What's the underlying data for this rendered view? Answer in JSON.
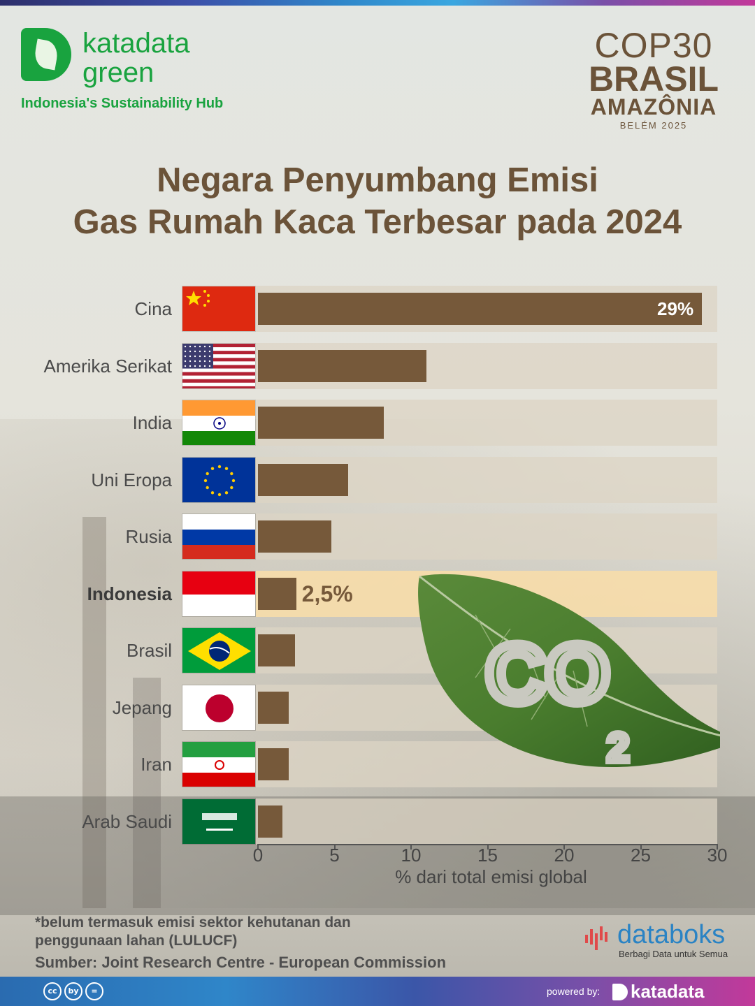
{
  "header": {
    "brand_line1": "katadata",
    "brand_line2": "green",
    "tagline": "Indonesia's Sustainability Hub",
    "cop_line1": "COP30",
    "cop_line2": "BRASIL",
    "cop_line3": "AMAZÔNIA",
    "cop_line4": "BELÉM 2025"
  },
  "title_line1": "Negara Penyumbang Emisi",
  "title_line2": "Gas Rumah Kaca Terbesar pada 2024",
  "chart_data": {
    "type": "bar",
    "orientation": "horizontal",
    "categories": [
      "Cina",
      "Amerika Serikat",
      "India",
      "Uni Eropa",
      "Rusia",
      "Indonesia",
      "Brasil",
      "Jepang",
      "Iran",
      "Arab Saudi"
    ],
    "values": [
      29,
      11,
      8.2,
      5.9,
      4.8,
      2.5,
      2.4,
      2.0,
      2.0,
      1.6
    ],
    "highlight": "Indonesia",
    "value_labels": {
      "Cina": "29%",
      "Indonesia": "2,5%"
    },
    "xlabel": "% dari total emisi global",
    "xlim": [
      0,
      30
    ],
    "xticks": [
      0,
      5,
      10,
      15,
      20,
      25,
      30
    ],
    "colors": {
      "bar": "#76593a",
      "track": "#dcd4c4",
      "highlight_track": "#f6dcaa"
    }
  },
  "leaf_text": {
    "main": "CO",
    "sub": "2"
  },
  "footer": {
    "note": "*belum termasuk emisi sektor kehutanan dan penggunaan lahan (LULUCF)",
    "source": "Sumber: Joint Research Centre - European Commission",
    "databoks_name": "databoks",
    "databoks_tagline": "Berbagi Data untuk Semua",
    "powered_by": "powered by:",
    "katadata": "katadata",
    "license_icons": [
      "cc",
      "by",
      "="
    ]
  }
}
